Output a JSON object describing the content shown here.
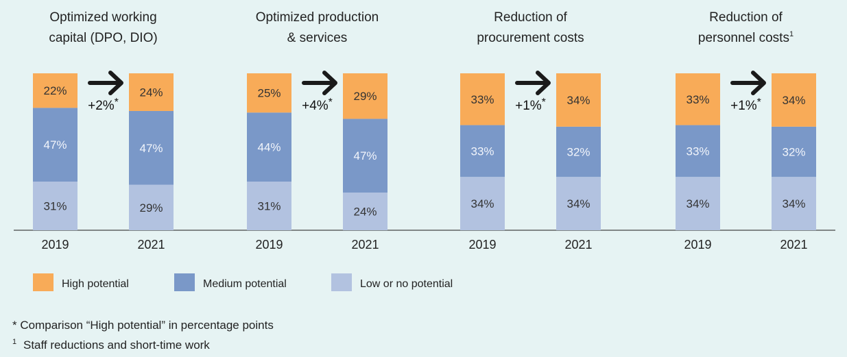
{
  "chart_data": [
    {
      "type": "bar",
      "stacked": true,
      "title": "Optimized working capital (DPO, DIO)",
      "title_lines": [
        "Optimized working",
        "capital (DPO, DIO)"
      ],
      "title_sup": "",
      "categories": [
        "2019",
        "2021"
      ],
      "series": [
        {
          "name": "Low or no potential",
          "values": [
            31,
            29
          ]
        },
        {
          "name": "Medium potential",
          "values": [
            47,
            47
          ]
        },
        {
          "name": "High potential",
          "values": [
            22,
            24
          ]
        }
      ],
      "labels": [
        [
          "31%",
          "47%",
          "22%"
        ],
        [
          "29%",
          "47%",
          "24%"
        ]
      ],
      "change": "+2%",
      "change_mark": "*"
    },
    {
      "type": "bar",
      "stacked": true,
      "title": "Optimized production & services",
      "title_lines": [
        "Optimized production",
        "& services"
      ],
      "title_sup": "",
      "categories": [
        "2019",
        "2021"
      ],
      "series": [
        {
          "name": "Low or no potential",
          "values": [
            31,
            24
          ]
        },
        {
          "name": "Medium potential",
          "values": [
            44,
            47
          ]
        },
        {
          "name": "High potential",
          "values": [
            25,
            29
          ]
        }
      ],
      "labels": [
        [
          "31%",
          "44%",
          "25%"
        ],
        [
          "24%",
          "47%",
          "29%"
        ]
      ],
      "change": "+4%",
      "change_mark": "*"
    },
    {
      "type": "bar",
      "stacked": true,
      "title": "Reduction of procurement costs",
      "title_lines": [
        "Reduction of",
        "procurement costs"
      ],
      "title_sup": "",
      "categories": [
        "2019",
        "2021"
      ],
      "series": [
        {
          "name": "Low or no potential",
          "values": [
            34,
            34
          ]
        },
        {
          "name": "Medium potential",
          "values": [
            33,
            32
          ]
        },
        {
          "name": "High potential",
          "values": [
            33,
            34
          ]
        }
      ],
      "labels": [
        [
          "34%",
          "33%",
          "33%"
        ],
        [
          "34%",
          "32%",
          "34%"
        ]
      ],
      "change": "+1%",
      "change_mark": "*"
    },
    {
      "type": "bar",
      "stacked": true,
      "title": "Reduction of personnel costs",
      "title_lines": [
        "Reduction of",
        "personnel costs"
      ],
      "title_sup": "1",
      "categories": [
        "2019",
        "2021"
      ],
      "series": [
        {
          "name": "Low or no potential",
          "values": [
            34,
            34
          ]
        },
        {
          "name": "Medium potential",
          "values": [
            33,
            32
          ]
        },
        {
          "name": "High potential",
          "values": [
            33,
            34
          ]
        }
      ],
      "labels": [
        [
          "34%",
          "33%",
          "33%"
        ],
        [
          "34%",
          "32%",
          "34%"
        ]
      ],
      "change": "+1%",
      "change_mark": "*"
    }
  ],
  "legend": [
    {
      "label": "High potential",
      "color": "#f8ab58"
    },
    {
      "label": "Medium potential",
      "color": "#7a98c8"
    },
    {
      "label": "Low or no potential",
      "color": "#b2c2e0"
    }
  ],
  "colors": {
    "high": "#f8ab58",
    "medium": "#7a98c8",
    "low": "#b2c2e0",
    "label_dark": "#333333",
    "label_light": "#f2f5fb",
    "background": "#e6f3f3"
  },
  "footnotes": [
    {
      "mark": "*",
      "text": "Comparison “High potential” in percentage points"
    },
    {
      "mark": "1",
      "text": "Staff reductions and short-time work"
    }
  ]
}
